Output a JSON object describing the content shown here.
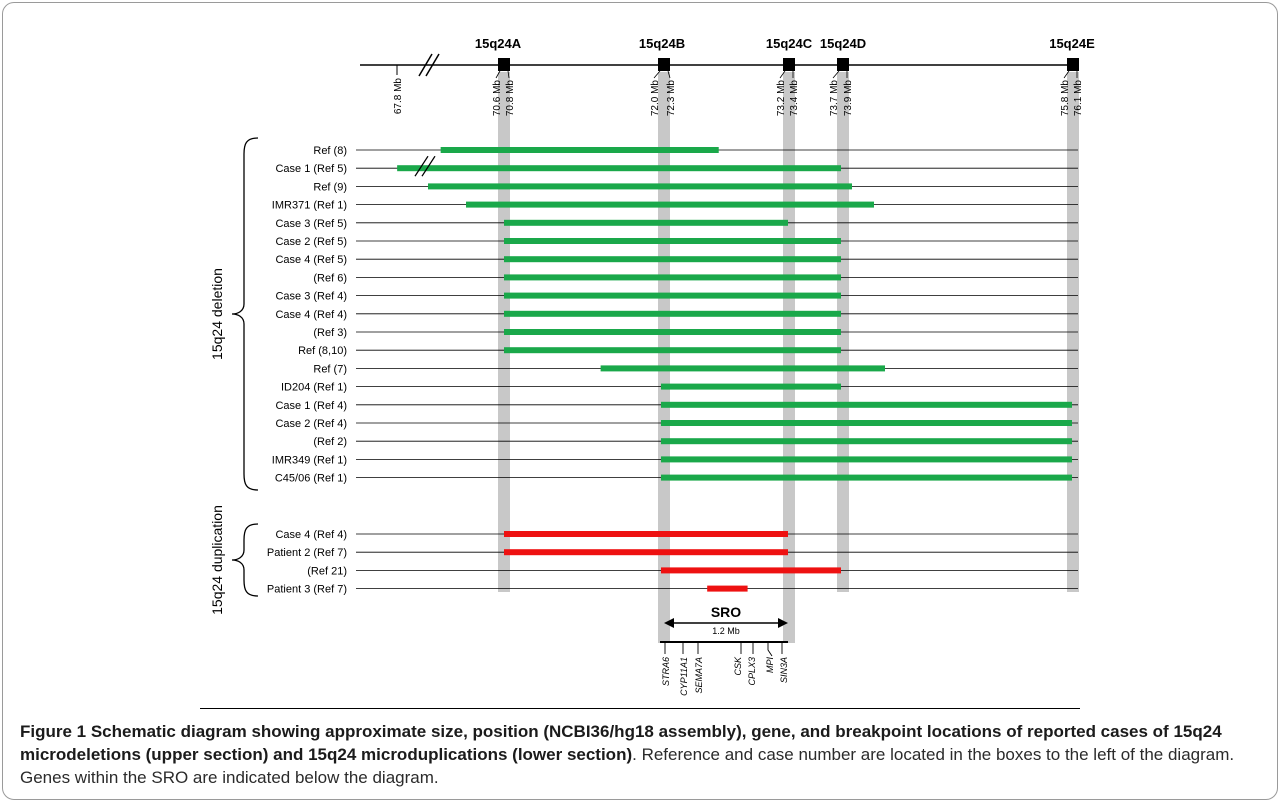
{
  "figure": {
    "bands": [
      {
        "name": "15q24A",
        "left_mb": "70.6 Mb",
        "right_mb": "70.8 Mb"
      },
      {
        "name": "15q24B",
        "left_mb": "72.0 Mb",
        "right_mb": "72.3 Mb"
      },
      {
        "name": "15q24C",
        "left_mb": "73.2 Mb",
        "right_mb": "73.4 Mb"
      },
      {
        "name": "15q24D",
        "left_mb": "73.7 Mb",
        "right_mb": "73.9 Mb"
      },
      {
        "name": "15q24E",
        "left_mb": "75.8 Mb",
        "right_mb": "76.1 Mb"
      }
    ],
    "start_mb": "67.8 Mb",
    "colors": {
      "deletion": "#1aa84a",
      "duplication": "#ee1111",
      "band_shade": "#c8c8c8"
    },
    "deletion_group": {
      "label": "15q24 deletion",
      "rows": [
        {
          "label": "Ref (8)",
          "start": 70.3,
          "end": 72.6,
          "break": false
        },
        {
          "label": "Case 1 (Ref 5)",
          "start": 69.9,
          "end": 73.7,
          "break": true
        },
        {
          "label": "Ref (9)",
          "start": 70.2,
          "end": 73.8,
          "break": false
        },
        {
          "label": "IMR371 (Ref 1)",
          "start": 70.5,
          "end": 74.0,
          "break": false
        },
        {
          "label": "Case 3 (Ref 5)",
          "start": 70.8,
          "end": 73.2,
          "break": false
        },
        {
          "label": "Case 2 (Ref 5)",
          "start": 70.8,
          "end": 73.7,
          "break": false
        },
        {
          "label": "Case 4 (Ref 5)",
          "start": 70.8,
          "end": 73.7,
          "break": false
        },
        {
          "label": "(Ref 6)",
          "start": 70.8,
          "end": 73.7,
          "break": false
        },
        {
          "label": "Case 3 (Ref 4)",
          "start": 70.8,
          "end": 73.7,
          "break": false
        },
        {
          "label": "Case 4 (Ref 4)",
          "start": 70.8,
          "end": 73.7,
          "break": false
        },
        {
          "label": "(Ref 3)",
          "start": 70.8,
          "end": 73.7,
          "break": false
        },
        {
          "label": "Ref (8,10)",
          "start": 70.8,
          "end": 73.7,
          "break": false
        },
        {
          "label": "Ref (7)",
          "start": 71.6,
          "end": 74.1,
          "break": false
        },
        {
          "label": "ID204 (Ref 1)",
          "start": 72.1,
          "end": 73.7,
          "break": false
        },
        {
          "label": "Case 1 (Ref 4)",
          "start": 72.1,
          "end": 75.8,
          "break": false
        },
        {
          "label": "Case 2 (Ref 4)",
          "start": 72.1,
          "end": 75.8,
          "break": false
        },
        {
          "label": "(Ref 2)",
          "start": 72.1,
          "end": 75.8,
          "break": false
        },
        {
          "label": "IMR349 (Ref 1)",
          "start": 72.1,
          "end": 75.8,
          "break": false
        },
        {
          "label": "C45/06 (Ref 1)",
          "start": 72.1,
          "end": 75.8,
          "break": false
        }
      ]
    },
    "duplication_group": {
      "label": "15q24 duplication",
      "rows": [
        {
          "label": "Case 4 (Ref 4)",
          "start": 70.8,
          "end": 73.2,
          "break": false
        },
        {
          "label": "Patient 2 (Ref 7)",
          "start": 70.8,
          "end": 73.2,
          "break": false
        },
        {
          "label": "(Ref 21)",
          "start": 72.1,
          "end": 73.7,
          "break": false
        },
        {
          "label": "Patient 3 (Ref 7)",
          "start": 72.5,
          "end": 72.85,
          "break": false
        }
      ]
    },
    "sro": {
      "label": "SRO",
      "size": "1.2 Mb"
    },
    "genes": [
      "STRA6",
      "CYP11A1",
      "SEMA7A",
      "CSK",
      "CPLX3",
      "MPI",
      "SIN3A"
    ]
  },
  "caption": {
    "bold": "Figure 1 Schematic diagram showing approximate size, position (NCBI36/hg18 assembly), gene, and breakpoint locations of reported cases of 15q24 microdeletions (upper section) and 15q24 microduplications (lower section)",
    "rest": ". Reference and case number are located in the boxes to the left of the diagram. Genes within the SRO are indicated below the diagram."
  }
}
